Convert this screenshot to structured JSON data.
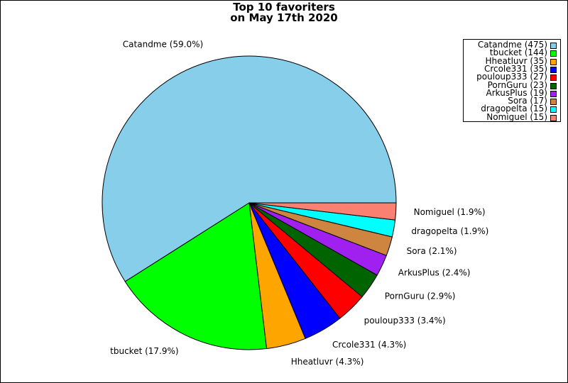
{
  "chart_data": {
    "type": "pie",
    "title_lines": [
      "Top 10 favoriters",
      "on May 17th 2020"
    ],
    "slices": [
      {
        "name": "Catandme",
        "count": 475,
        "percent": 59.0,
        "color": "#87CEEB"
      },
      {
        "name": "tbucket",
        "count": 144,
        "percent": 17.9,
        "color": "#00FF00"
      },
      {
        "name": "Hheatluvr",
        "count": 35,
        "percent": 4.3,
        "color": "#FFA500"
      },
      {
        "name": "Crcole331",
        "count": 35,
        "percent": 4.3,
        "color": "#0000FF"
      },
      {
        "name": "pouloup333",
        "count": 27,
        "percent": 3.4,
        "color": "#FF0000"
      },
      {
        "name": "PornGuru",
        "count": 23,
        "percent": 2.9,
        "color": "#006400"
      },
      {
        "name": "ArkusPlus",
        "count": 19,
        "percent": 2.4,
        "color": "#A020F0"
      },
      {
        "name": "Sora",
        "count": 17,
        "percent": 2.1,
        "color": "#CD853F"
      },
      {
        "name": "dragopelta",
        "count": 15,
        "percent": 1.9,
        "color": "#00FFFF"
      },
      {
        "name": "Nomiguel",
        "count": 15,
        "percent": 1.9,
        "color": "#FA8072"
      }
    ],
    "slice_labels": [
      "Catandme (59.0%)",
      "tbucket (17.9%)",
      "Hheatluvr (4.3%)",
      "Crcole331 (4.3%)",
      "pouloup333 (3.4%)",
      "PornGuru (2.9%)",
      "ArkusPlus (2.4%)",
      "Sora (2.1%)",
      "dragopelta (1.9%)",
      "Nomiguel (1.9%)"
    ],
    "legend_entries": [
      "Catandme (475)",
      "tbucket (144)",
      "Hheatluvr (35)",
      "Crcole331 (35)",
      "pouloup333 (27)",
      "PornGuru (23)",
      "ArkusPlus (19)",
      "Sora (17)",
      "dragopelta (15)",
      "Nomiguel (15)"
    ],
    "start_angle_deg": 0,
    "direction": "counterclockwise",
    "legend_position": "top-right"
  }
}
